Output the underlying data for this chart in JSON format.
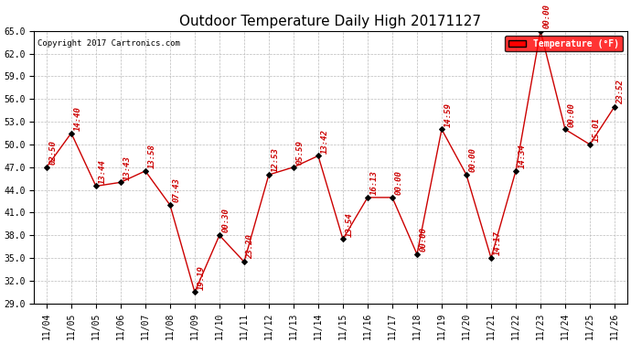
{
  "title": "Outdoor Temperature Daily High 20171127",
  "copyright": "Copyright 2017 Cartronics.com",
  "legend_label": "Temperature (°F)",
  "x_ticks": [
    "11/04",
    "11/05",
    "11/05",
    "11/06",
    "11/07",
    "11/08",
    "11/09",
    "11/10",
    "11/11",
    "11/12",
    "11/13",
    "11/14",
    "11/15",
    "11/16",
    "11/17",
    "11/18",
    "11/19",
    "11/20",
    "11/21",
    "11/22",
    "11/23",
    "11/24",
    "11/25",
    "11/26"
  ],
  "y_values": [
    47.0,
    51.5,
    44.5,
    45.0,
    46.5,
    42.0,
    30.5,
    38.0,
    34.5,
    46.0,
    47.0,
    48.5,
    37.5,
    43.0,
    43.0,
    35.5,
    52.0,
    46.0,
    35.0,
    46.5,
    65.0,
    52.0,
    50.0,
    55.0
  ],
  "x_values": [
    0,
    1,
    2,
    3,
    4,
    5,
    6,
    7,
    8,
    9,
    10,
    11,
    12,
    13,
    14,
    15,
    16,
    17,
    18,
    19,
    20,
    21,
    22,
    23
  ],
  "point_labels": [
    "02:50",
    "14:40",
    "13:44",
    "13:43",
    "13:58",
    "07:43",
    "19:19",
    "00:30",
    "23:20",
    "12:53",
    "05:59",
    "13:42",
    "13:54",
    "16:13",
    "00:00",
    "00:00",
    "14:59",
    "00:00",
    "14:17",
    "14:34",
    "00:00",
    "00:00",
    "15:01",
    "23:52"
  ],
  "ylim": [
    29.0,
    65.0
  ],
  "yticks": [
    29.0,
    32.0,
    35.0,
    38.0,
    41.0,
    44.0,
    47.0,
    50.0,
    53.0,
    56.0,
    59.0,
    62.0,
    65.0
  ],
  "line_color": "#cc0000",
  "marker_color": "#000000",
  "bg_color": "#ffffff",
  "grid_color": "#bbbbbb",
  "label_color": "#cc0000",
  "title_fontsize": 11,
  "tick_fontsize": 7,
  "annotation_fontsize": 6.5,
  "copyright_fontsize": 6.5
}
